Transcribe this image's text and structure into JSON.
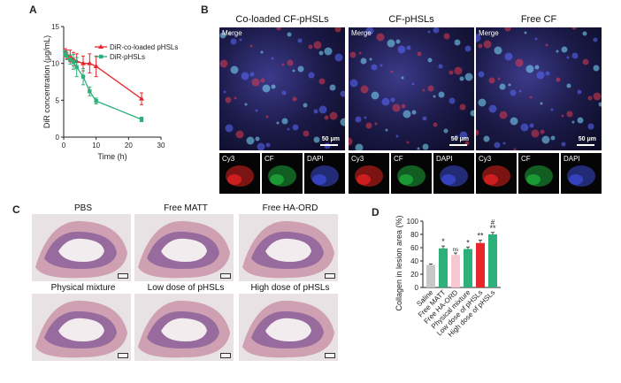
{
  "panels": {
    "a": "A",
    "b": "B",
    "c": "C",
    "d": "D"
  },
  "chart_data": [
    {
      "type": "line",
      "xlabel": "Time (h)",
      "ylabel": "DiR concentration (μg/mL)",
      "xlim": [
        0,
        30
      ],
      "ylim": [
        0,
        15
      ],
      "xticks": [
        "0",
        "10",
        "20",
        "30"
      ],
      "yticks": [
        "0",
        "5",
        "10",
        "15"
      ],
      "legend_position": "top-right",
      "series": [
        {
          "name": "DiR-co-loaded pHSLs",
          "color": "#e8262b",
          "x": [
            0.5,
            1,
            2,
            3,
            4,
            6,
            8,
            10,
            24
          ],
          "y": [
            11.5,
            11.2,
            11.0,
            10.6,
            10.3,
            10.0,
            10.0,
            9.6,
            5.2
          ],
          "err": [
            0.5,
            0.6,
            0.8,
            0.9,
            1.0,
            1.0,
            1.3,
            1.4,
            0.8
          ]
        },
        {
          "name": "DiR-pHSLs",
          "color": "#2db07a",
          "x": [
            0.5,
            1,
            2,
            3,
            4,
            6,
            8,
            10,
            24
          ],
          "y": [
            11.3,
            11.0,
            10.5,
            10.2,
            9.5,
            8.2,
            6.2,
            4.9,
            2.4
          ],
          "err": [
            0.4,
            0.5,
            0.6,
            1.0,
            1.3,
            1.1,
            0.6,
            0.4,
            0.3
          ]
        }
      ]
    },
    {
      "type": "bar",
      "ylabel": "Collagen in lesion area (%)",
      "ylim": [
        0,
        100
      ],
      "yticks": [
        "0",
        "20",
        "40",
        "60",
        "80",
        "100"
      ],
      "categories": [
        "Saline",
        "Free MATT",
        "Free HA-ORD",
        "Physical mixture",
        "Low dose of pHSLs",
        "High dose of pHSLs"
      ],
      "values": [
        34,
        59,
        49,
        58,
        67,
        80
      ],
      "errors": [
        1.5,
        3.5,
        3.0,
        3.0,
        4.5,
        3.0
      ],
      "colors": [
        "#c8c8c8",
        "#2db07a",
        "#f7c8cf",
        "#2db07a",
        "#e8262b",
        "#2db07a"
      ],
      "annotations": [
        "",
        "*",
        "ns",
        "*",
        "**",
        "**"
      ],
      "top_annotation": {
        "index": 5,
        "text": "#"
      }
    }
  ],
  "panel_b": {
    "titles": [
      "Co-loaded CF-pHSLs",
      "CF-pHSLs",
      "Free CF"
    ],
    "merge_label": "Merge",
    "scale_label": "50 μm",
    "channels": [
      "Cy3",
      "CF",
      "DAPI"
    ],
    "channel_colors": [
      "#e02020",
      "#1ea83a",
      "#3a4ad0"
    ]
  },
  "panel_c": {
    "titles": [
      "PBS",
      "Free MATT",
      "Free HA-ORD",
      "Physical mixture",
      "Low dose of pHSLs",
      "High dose of pHSLs"
    ]
  }
}
